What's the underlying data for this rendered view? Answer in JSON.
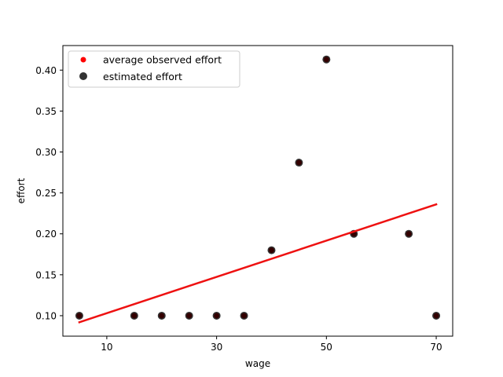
{
  "chart_data": {
    "type": "scatter",
    "xlabel": "wage",
    "ylabel": "effort",
    "xlim": [
      2,
      73
    ],
    "ylim": [
      0.075,
      0.43
    ],
    "xticks": [
      10,
      30,
      50,
      70
    ],
    "xtick_labels": [
      "10",
      "30",
      "50",
      "70"
    ],
    "yticks": [
      0.1,
      0.15,
      0.2,
      0.25,
      0.3,
      0.35,
      0.4
    ],
    "ytick_labels": [
      "0.10",
      "0.15",
      "0.20",
      "0.25",
      "0.30",
      "0.35",
      "0.40"
    ],
    "legend_position": "top-left",
    "series": [
      {
        "name": "average observed effort",
        "kind": "scatter",
        "color": "#ff0000",
        "x": [
          5,
          15,
          20,
          25,
          30,
          35,
          40,
          45,
          50,
          55,
          65,
          70
        ],
        "y": [
          0.1,
          0.1,
          0.1,
          0.1,
          0.1,
          0.1,
          0.18,
          0.287,
          0.413,
          0.2,
          0.2,
          0.1
        ]
      },
      {
        "name": "estimated effort",
        "kind": "scatter",
        "color": "#000000",
        "opacity": 0.8,
        "x": [
          5,
          15,
          20,
          25,
          30,
          35,
          40,
          45,
          50,
          55,
          65,
          70
        ],
        "y": [
          0.1,
          0.1,
          0.1,
          0.1,
          0.1,
          0.1,
          0.18,
          0.287,
          0.413,
          0.2,
          0.2,
          0.1
        ]
      },
      {
        "kind": "line",
        "color": "#ee1111",
        "x": [
          5,
          70
        ],
        "y": [
          0.092,
          0.236
        ]
      }
    ]
  }
}
